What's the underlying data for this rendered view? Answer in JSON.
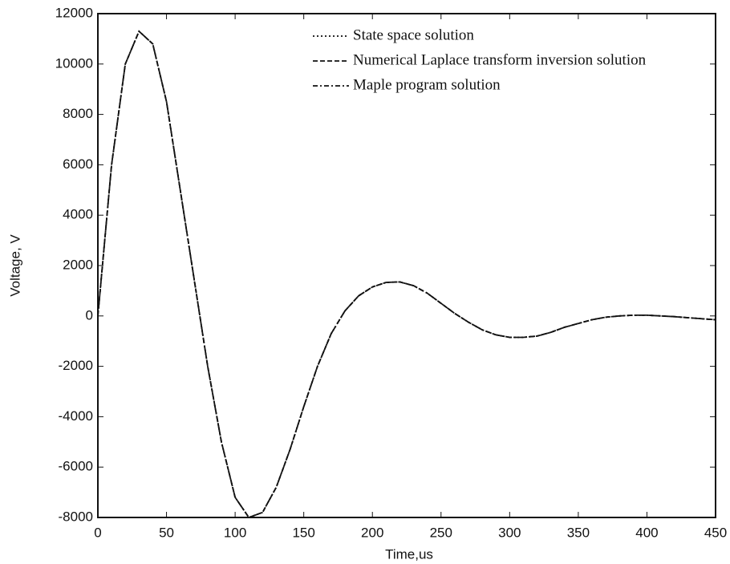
{
  "chart_data": {
    "type": "line",
    "xlabel": "Time,us",
    "ylabel": "Voltage, V",
    "x": [
      0,
      10,
      20,
      30,
      40,
      50,
      60,
      70,
      80,
      90,
      100,
      110,
      120,
      130,
      140,
      150,
      160,
      170,
      180,
      190,
      200,
      210,
      220,
      230,
      240,
      250,
      260,
      270,
      280,
      290,
      300,
      310,
      320,
      330,
      340,
      350,
      360,
      370,
      380,
      390,
      400,
      410,
      420,
      430,
      440,
      450
    ],
    "series": [
      {
        "name": "State space solution",
        "color": "#111111",
        "dash": "2,3",
        "values": [
          0,
          6000,
          10000,
          11300,
          10800,
          8500,
          5000,
          1500,
          -2000,
          -5000,
          -7200,
          -8000,
          -7800,
          -6800,
          -5300,
          -3600,
          -2000,
          -700,
          200,
          800,
          1150,
          1330,
          1350,
          1200,
          900,
          500,
          100,
          -250,
          -550,
          -750,
          -850,
          -850,
          -800,
          -650,
          -450,
          -300,
          -150,
          -50,
          0,
          30,
          30,
          0,
          -30,
          -70,
          -110,
          -150
        ]
      },
      {
        "name": "Numerical Laplace transform inversion solution",
        "color": "#111111",
        "dash": "6,3",
        "values": [
          0,
          6000,
          10000,
          11300,
          10800,
          8500,
          5000,
          1500,
          -2000,
          -5000,
          -7200,
          -8000,
          -7800,
          -6800,
          -5300,
          -3600,
          -2000,
          -700,
          200,
          800,
          1150,
          1330,
          1350,
          1200,
          900,
          500,
          100,
          -250,
          -550,
          -750,
          -850,
          -850,
          -800,
          -650,
          -450,
          -300,
          -150,
          -50,
          0,
          30,
          30,
          0,
          -30,
          -70,
          -110,
          -150
        ]
      },
      {
        "name": "Maple program solution",
        "color": "#111111",
        "dash": "6,3,2,3",
        "values": [
          0,
          6000,
          10000,
          11300,
          10800,
          8500,
          5000,
          1500,
          -2000,
          -5000,
          -7200,
          -8000,
          -7800,
          -6800,
          -5300,
          -3600,
          -2000,
          -700,
          200,
          800,
          1150,
          1330,
          1350,
          1200,
          900,
          500,
          100,
          -250,
          -550,
          -750,
          -850,
          -850,
          -800,
          -650,
          -450,
          -300,
          -150,
          -50,
          0,
          30,
          30,
          0,
          -30,
          -70,
          -110,
          -150
        ]
      }
    ],
    "xlim": [
      0,
      450
    ],
    "xticks": [
      0,
      50,
      100,
      150,
      200,
      250,
      300,
      350,
      400,
      450
    ],
    "ylim": [
      -8000,
      12000
    ],
    "yticks": [
      -8000,
      -6000,
      -4000,
      -2000,
      0,
      2000,
      4000,
      6000,
      8000,
      10000,
      12000
    ]
  }
}
